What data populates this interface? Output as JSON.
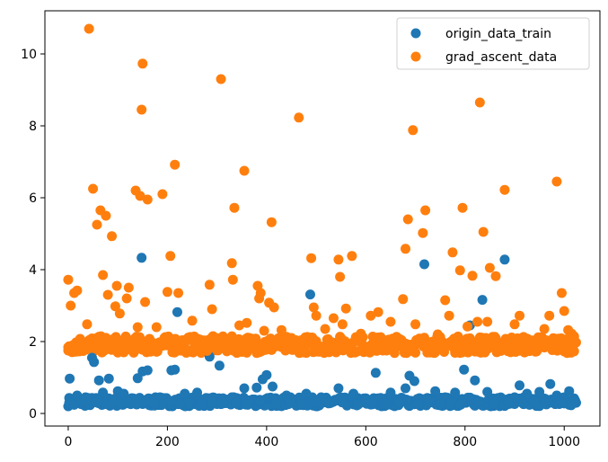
{
  "chart_data": {
    "type": "scatter",
    "title": "",
    "xlabel": "",
    "ylabel": "",
    "xlim": [
      -47,
      1072
    ],
    "ylim": [
      -0.35,
      11.2
    ],
    "xticks": [
      0,
      200,
      400,
      600,
      800,
      1000
    ],
    "yticks": [
      0,
      2,
      4,
      6,
      8,
      10
    ],
    "xtick_labels": [
      "0",
      "200",
      "400",
      "600",
      "800",
      "1000"
    ],
    "ytick_labels": [
      "0",
      "2",
      "4",
      "6",
      "8",
      "10"
    ],
    "grid": false,
    "legend": {
      "position": "top-right",
      "entries": [
        "origin_data_train",
        "grad_ascent_data"
      ]
    },
    "series": [
      {
        "name": "origin_data_train",
        "color": "#1f77b4",
        "points": [
          [
            3,
            0.97
          ],
          [
            18,
            0.5
          ],
          [
            35,
            0.45
          ],
          [
            48,
            1.55
          ],
          [
            52,
            1.43
          ],
          [
            62,
            0.92
          ],
          [
            70,
            0.58
          ],
          [
            82,
            0.97
          ],
          [
            100,
            0.62
          ],
          [
            112,
            0.55
          ],
          [
            130,
            0.42
          ],
          [
            140,
            0.98
          ],
          [
            148,
            4.33
          ],
          [
            150,
            1.17
          ],
          [
            160,
            1.2
          ],
          [
            185,
            0.45
          ],
          [
            208,
            1.2
          ],
          [
            215,
            1.22
          ],
          [
            220,
            2.82
          ],
          [
            235,
            0.55
          ],
          [
            260,
            0.58
          ],
          [
            285,
            1.58
          ],
          [
            305,
            1.33
          ],
          [
            330,
            0.45
          ],
          [
            355,
            0.7
          ],
          [
            380,
            0.72
          ],
          [
            392,
            0.95
          ],
          [
            400,
            1.07
          ],
          [
            412,
            0.75
          ],
          [
            440,
            0.5
          ],
          [
            480,
            0.55
          ],
          [
            488,
            3.31
          ],
          [
            510,
            0.45
          ],
          [
            545,
            0.7
          ],
          [
            575,
            0.55
          ],
          [
            600,
            0.42
          ],
          [
            620,
            1.13
          ],
          [
            650,
            0.58
          ],
          [
            680,
            0.7
          ],
          [
            688,
            1.05
          ],
          [
            698,
            0.9
          ],
          [
            718,
            4.15
          ],
          [
            740,
            0.62
          ],
          [
            760,
            0.45
          ],
          [
            780,
            0.58
          ],
          [
            798,
            1.22
          ],
          [
            810,
            2.45
          ],
          [
            820,
            0.92
          ],
          [
            835,
            3.16
          ],
          [
            845,
            0.6
          ],
          [
            880,
            4.28
          ],
          [
            900,
            0.45
          ],
          [
            910,
            0.78
          ],
          [
            925,
            0.55
          ],
          [
            950,
            0.6
          ],
          [
            972,
            0.82
          ],
          [
            985,
            0.5
          ],
          [
            1000,
            0.45
          ],
          [
            1010,
            0.62
          ],
          [
            1020,
            0.32
          ],
          [
            2,
            0.3
          ],
          [
            12,
            0.24
          ],
          [
            27,
            0.33
          ],
          [
            42,
            0.28
          ],
          [
            57,
            0.31
          ],
          [
            75,
            0.26
          ],
          [
            90,
            0.35
          ],
          [
            108,
            0.27
          ],
          [
            122,
            0.3
          ],
          [
            138,
            0.25
          ],
          [
            155,
            0.33
          ],
          [
            172,
            0.29
          ],
          [
            190,
            0.26
          ],
          [
            205,
            0.34
          ],
          [
            225,
            0.27
          ],
          [
            245,
            0.31
          ],
          [
            268,
            0.24
          ],
          [
            290,
            0.33
          ],
          [
            312,
            0.28
          ],
          [
            338,
            0.3
          ],
          [
            362,
            0.25
          ],
          [
            388,
            0.34
          ],
          [
            418,
            0.27
          ],
          [
            448,
            0.31
          ],
          [
            470,
            0.26
          ],
          [
            498,
            0.33
          ],
          [
            525,
            0.28
          ],
          [
            555,
            0.3
          ],
          [
            585,
            0.25
          ],
          [
            612,
            0.34
          ],
          [
            640,
            0.27
          ],
          [
            668,
            0.31
          ],
          [
            705,
            0.26
          ],
          [
            728,
            0.33
          ],
          [
            752,
            0.28
          ],
          [
            772,
            0.3
          ],
          [
            792,
            0.25
          ],
          [
            828,
            0.34
          ],
          [
            858,
            0.27
          ],
          [
            888,
            0.31
          ],
          [
            918,
            0.26
          ],
          [
            940,
            0.33
          ],
          [
            962,
            0.28
          ],
          [
            995,
            0.3
          ],
          [
            1015,
            0.25
          ]
        ]
      },
      {
        "name": "grad_ascent_data",
        "color": "#ff7f0e",
        "points": [
          [
            0,
            3.72
          ],
          [
            5,
            3.0
          ],
          [
            12,
            3.35
          ],
          [
            18,
            3.42
          ],
          [
            38,
            2.48
          ],
          [
            42,
            10.7
          ],
          [
            50,
            6.25
          ],
          [
            58,
            5.25
          ],
          [
            65,
            5.65
          ],
          [
            70,
            3.85
          ],
          [
            76,
            5.5
          ],
          [
            80,
            3.3
          ],
          [
            88,
            4.93
          ],
          [
            95,
            2.98
          ],
          [
            98,
            3.55
          ],
          [
            104,
            2.78
          ],
          [
            118,
            3.2
          ],
          [
            122,
            3.5
          ],
          [
            136,
            6.2
          ],
          [
            140,
            2.4
          ],
          [
            145,
            6.05
          ],
          [
            150,
            9.73
          ],
          [
            148,
            8.45
          ],
          [
            155,
            3.1
          ],
          [
            160,
            5.95
          ],
          [
            178,
            2.4
          ],
          [
            190,
            6.1
          ],
          [
            200,
            3.38
          ],
          [
            206,
            4.38
          ],
          [
            215,
            6.92
          ],
          [
            222,
            3.35
          ],
          [
            250,
            2.58
          ],
          [
            285,
            3.58
          ],
          [
            290,
            2.9
          ],
          [
            308,
            9.3
          ],
          [
            330,
            4.18
          ],
          [
            332,
            3.72
          ],
          [
            335,
            5.72
          ],
          [
            345,
            2.45
          ],
          [
            355,
            6.75
          ],
          [
            360,
            2.52
          ],
          [
            382,
            3.55
          ],
          [
            385,
            3.2
          ],
          [
            388,
            3.35
          ],
          [
            395,
            2.3
          ],
          [
            405,
            3.08
          ],
          [
            410,
            5.32
          ],
          [
            415,
            2.95
          ],
          [
            430,
            2.32
          ],
          [
            465,
            8.23
          ],
          [
            490,
            4.32
          ],
          [
            495,
            2.95
          ],
          [
            500,
            2.72
          ],
          [
            518,
            2.35
          ],
          [
            535,
            2.65
          ],
          [
            545,
            4.28
          ],
          [
            548,
            3.8
          ],
          [
            553,
            2.48
          ],
          [
            560,
            2.92
          ],
          [
            572,
            4.38
          ],
          [
            590,
            2.22
          ],
          [
            610,
            2.72
          ],
          [
            625,
            2.82
          ],
          [
            650,
            2.55
          ],
          [
            675,
            3.18
          ],
          [
            680,
            4.58
          ],
          [
            685,
            5.4
          ],
          [
            695,
            7.88
          ],
          [
            700,
            2.48
          ],
          [
            715,
            5.02
          ],
          [
            720,
            5.65
          ],
          [
            745,
            2.2
          ],
          [
            760,
            3.15
          ],
          [
            768,
            2.72
          ],
          [
            775,
            4.48
          ],
          [
            790,
            3.98
          ],
          [
            795,
            5.72
          ],
          [
            805,
            2.42
          ],
          [
            815,
            3.83
          ],
          [
            825,
            2.55
          ],
          [
            830,
            8.65
          ],
          [
            837,
            5.05
          ],
          [
            845,
            2.55
          ],
          [
            850,
            4.05
          ],
          [
            862,
            3.82
          ],
          [
            880,
            6.22
          ],
          [
            900,
            2.48
          ],
          [
            910,
            2.72
          ],
          [
            935,
            2.02
          ],
          [
            960,
            2.35
          ],
          [
            970,
            2.72
          ],
          [
            985,
            6.45
          ],
          [
            995,
            3.35
          ],
          [
            1000,
            2.85
          ],
          [
            1008,
            2.32
          ],
          [
            1015,
            2.22
          ],
          [
            0,
            1.75
          ],
          [
            8,
            1.85
          ],
          [
            15,
            1.72
          ],
          [
            25,
            1.9
          ],
          [
            33,
            1.78
          ],
          [
            40,
            2.0
          ],
          [
            55,
            1.82
          ],
          [
            62,
            1.95
          ],
          [
            72,
            1.74
          ],
          [
            85,
            1.88
          ],
          [
            92,
            2.05
          ],
          [
            110,
            1.76
          ],
          [
            128,
            1.92
          ],
          [
            142,
            1.8
          ],
          [
            165,
            1.87
          ],
          [
            180,
            1.73
          ],
          [
            195,
            2.1
          ],
          [
            212,
            1.79
          ],
          [
            230,
            1.93
          ],
          [
            242,
            1.76
          ],
          [
            258,
            1.86
          ],
          [
            272,
            2.02
          ],
          [
            280,
            1.74
          ],
          [
            296,
            1.9
          ],
          [
            318,
            1.78
          ],
          [
            342,
            1.95
          ],
          [
            352,
            1.72
          ],
          [
            370,
            1.84
          ],
          [
            378,
            2.08
          ],
          [
            398,
            1.77
          ],
          [
            420,
            1.91
          ],
          [
            438,
            1.75
          ],
          [
            452,
            1.88
          ],
          [
            475,
            1.8
          ],
          [
            482,
            2.05
          ],
          [
            508,
            1.73
          ],
          [
            528,
            1.92
          ],
          [
            540,
            1.78
          ],
          [
            565,
            1.86
          ],
          [
            580,
            2.1
          ],
          [
            598,
            1.75
          ],
          [
            618,
            1.9
          ],
          [
            632,
            1.77
          ],
          [
            645,
            2.0
          ],
          [
            660,
            1.83
          ],
          [
            690,
            1.74
          ],
          [
            708,
            1.95
          ],
          [
            732,
            1.79
          ],
          [
            750,
            1.88
          ],
          [
            782,
            1.72
          ],
          [
            800,
            1.97
          ],
          [
            822,
            1.81
          ],
          [
            855,
            1.9
          ],
          [
            870,
            1.76
          ],
          [
            892,
            2.0
          ],
          [
            905,
            1.78
          ],
          [
            922,
            1.86
          ],
          [
            945,
            1.74
          ],
          [
            955,
            2.12
          ],
          [
            978,
            1.8
          ],
          [
            990,
            1.92
          ],
          [
            1005,
            1.76
          ],
          [
            1012,
            1.85
          ],
          [
            1020,
            1.73
          ]
        ]
      }
    ],
    "band_fill": [
      {
        "series": 0,
        "x_range": [
          0,
          1024
        ],
        "y_range": [
          0.2,
          0.45
        ],
        "step": 2
      },
      {
        "series": 1,
        "x_range": [
          0,
          1024
        ],
        "y_range": [
          1.68,
          2.15
        ],
        "step": 2
      }
    ]
  }
}
